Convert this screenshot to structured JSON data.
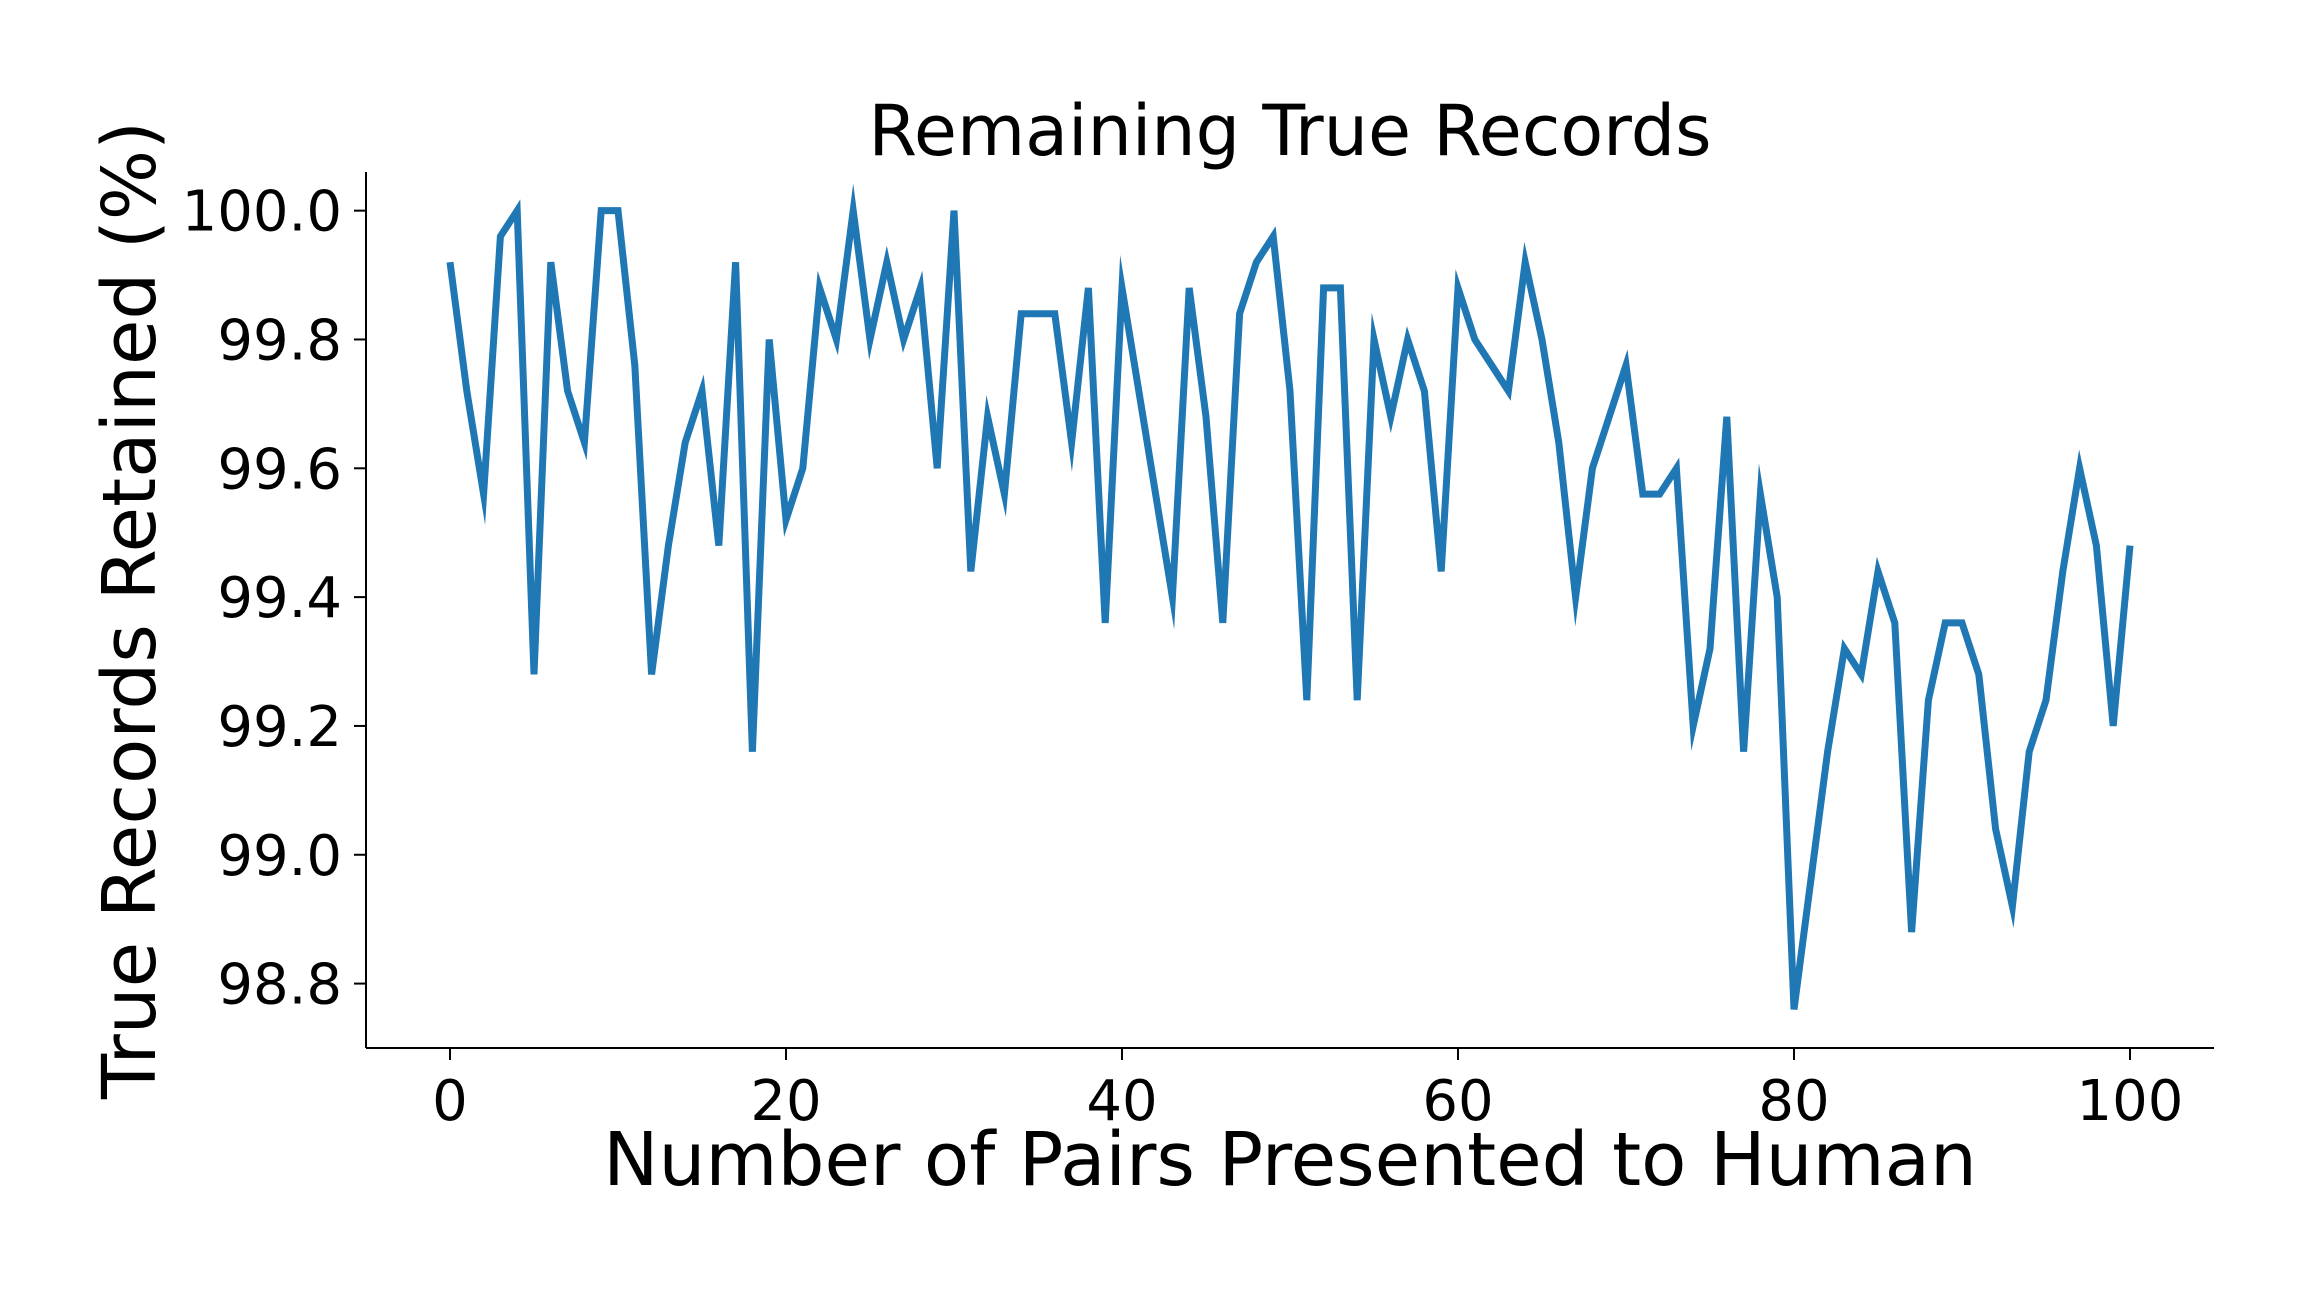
{
  "chart_data": {
    "type": "line",
    "title": "Remaining True Records",
    "xlabel": "Number of Pairs Presented to Human",
    "ylabel": "True Records Retained (%)",
    "xlim": [
      -5,
      105
    ],
    "ylim": [
      98.7,
      100.06
    ],
    "xticks": [
      0,
      20,
      40,
      60,
      80,
      100
    ],
    "yticks": [
      98.8,
      99.0,
      99.2,
      99.4,
      99.6,
      99.8,
      100.0
    ],
    "xtick_labels": [
      "0",
      "20",
      "40",
      "60",
      "80",
      "100"
    ],
    "ytick_labels": [
      "98.8",
      "99.0",
      "99.2",
      "99.4",
      "99.6",
      "99.8",
      "100.0"
    ],
    "grid": false,
    "series": [
      {
        "color": "#1f77b4",
        "x": [
          0,
          1,
          2,
          3,
          4,
          5,
          6,
          7,
          8,
          9,
          10,
          11,
          12,
          13,
          14,
          15,
          16,
          17,
          18,
          19,
          20,
          21,
          22,
          23,
          24,
          25,
          26,
          27,
          28,
          29,
          30,
          31,
          32,
          33,
          34,
          35,
          36,
          37,
          38,
          39,
          40,
          41,
          42,
          43,
          44,
          45,
          46,
          47,
          48,
          49,
          50,
          51,
          52,
          53,
          54,
          55,
          56,
          57,
          58,
          59,
          60,
          61,
          62,
          63,
          64,
          65,
          66,
          67,
          68,
          69,
          70,
          71,
          72,
          73,
          74,
          75,
          76,
          77,
          78,
          79,
          80,
          81,
          82,
          83,
          84,
          85,
          86,
          87,
          88,
          89,
          90,
          91,
          92,
          93,
          94,
          95,
          96,
          97,
          98,
          99,
          100
        ],
        "y": [
          99.92,
          99.72,
          99.56,
          99.96,
          100.0,
          99.28,
          99.92,
          99.72,
          99.64,
          100.0,
          100.0,
          99.76,
          99.28,
          99.48,
          99.64,
          99.72,
          99.48,
          99.92,
          99.16,
          99.8,
          99.52,
          99.6,
          99.88,
          99.8,
          100.0,
          99.8,
          99.92,
          99.8,
          99.88,
          99.6,
          100.0,
          99.44,
          99.68,
          99.56,
          99.84,
          99.84,
          99.84,
          99.64,
          99.88,
          99.36,
          99.88,
          99.72,
          99.56,
          99.4,
          99.88,
          99.68,
          99.36,
          99.84,
          99.92,
          99.96,
          99.72,
          99.24,
          99.88,
          99.88,
          99.24,
          99.8,
          99.68,
          99.8,
          99.72,
          99.44,
          99.88,
          99.8,
          99.76,
          99.72,
          99.92,
          99.8,
          99.64,
          99.4,
          99.6,
          99.68,
          99.76,
          99.56,
          99.56,
          99.6,
          99.2,
          99.32,
          99.68,
          99.16,
          99.56,
          99.4,
          98.76,
          98.96,
          99.16,
          99.32,
          99.28,
          99.44,
          99.36,
          98.88,
          99.24,
          99.36,
          99.36,
          99.28,
          99.04,
          98.92,
          99.16,
          99.24,
          99.44,
          99.6,
          99.48,
          99.2,
          99.48
        ]
      }
    ]
  }
}
